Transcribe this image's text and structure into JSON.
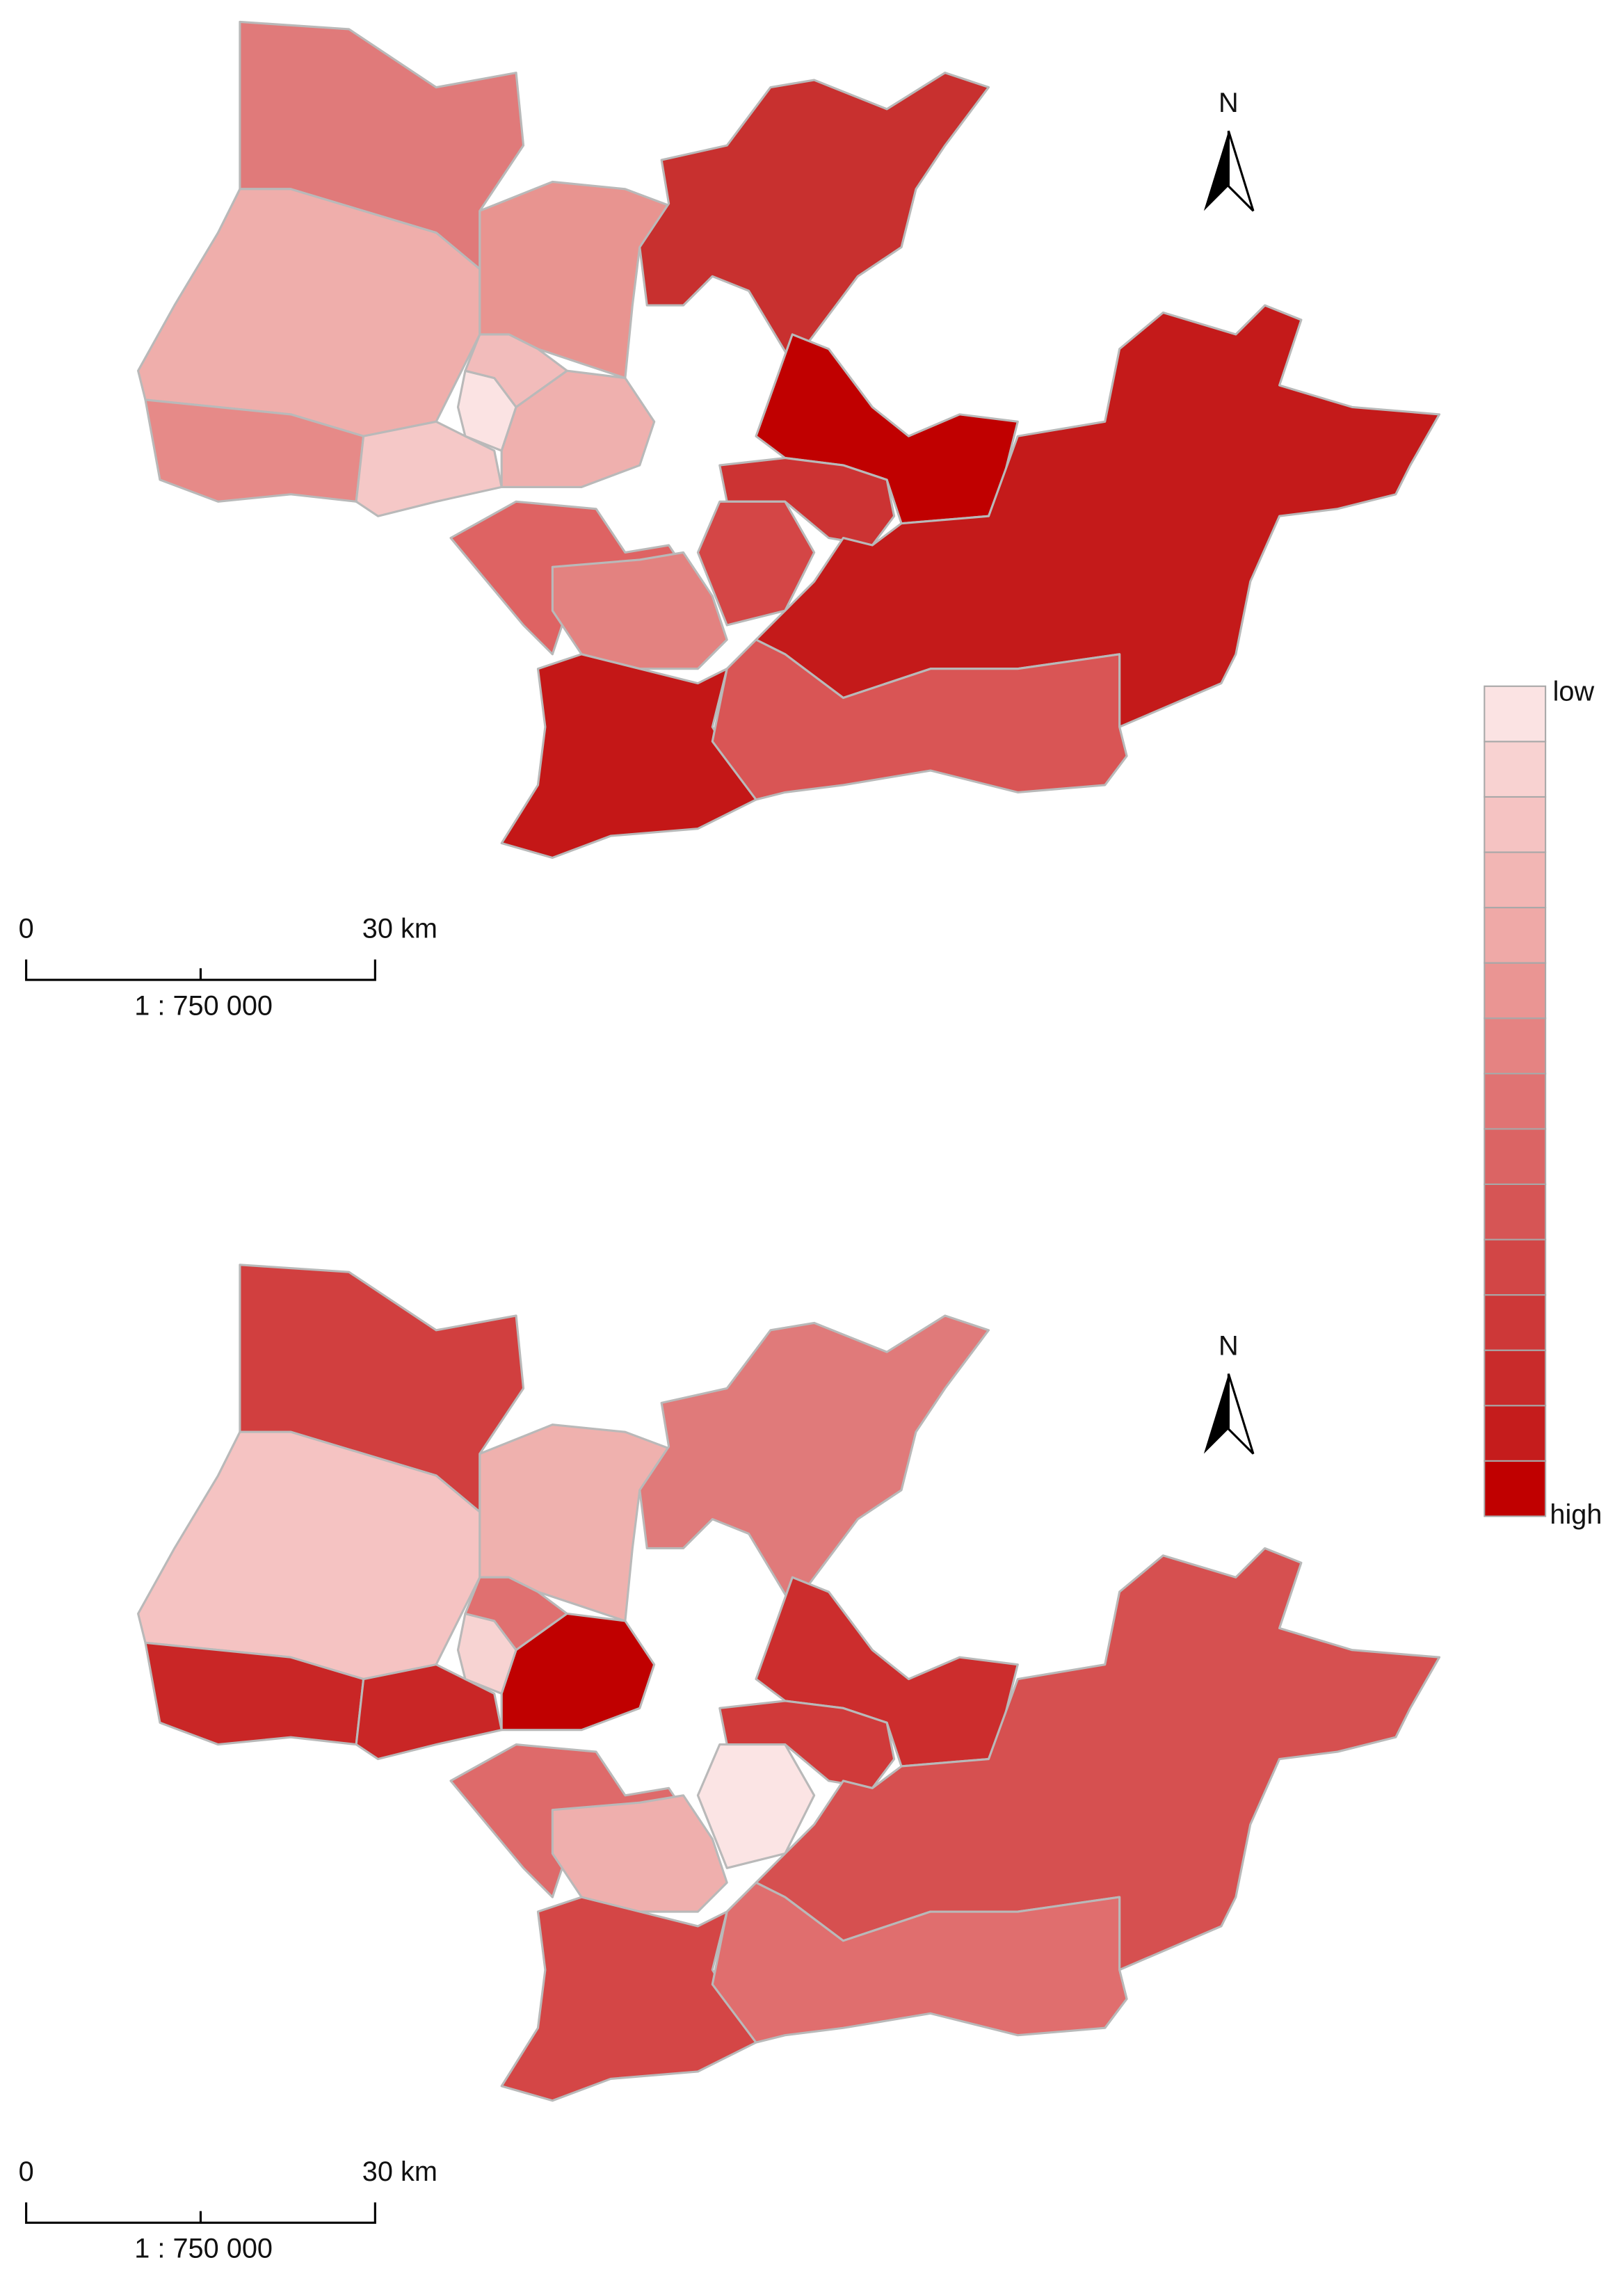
{
  "maps": [
    {
      "north": "N",
      "scale_bar": {
        "start": "0",
        "end": "30 km",
        "ratio": "1 : 750 000"
      }
    },
    {
      "north": "N",
      "scale_bar": {
        "start": "0",
        "end": "30 km",
        "ratio": "1 : 750 000"
      }
    }
  ],
  "legend": {
    "low": "low",
    "high": "high",
    "colors": [
      "#fbe3e3",
      "#f8d2d1",
      "#f5c3c2",
      "#f2b6b4",
      "#efa9a7",
      "#ea9593",
      "#e58382",
      "#e07373",
      "#db6464",
      "#d65555",
      "#d24646",
      "#cd3838",
      "#c92b2b",
      "#c51c1c",
      "#c00000"
    ]
  }
}
